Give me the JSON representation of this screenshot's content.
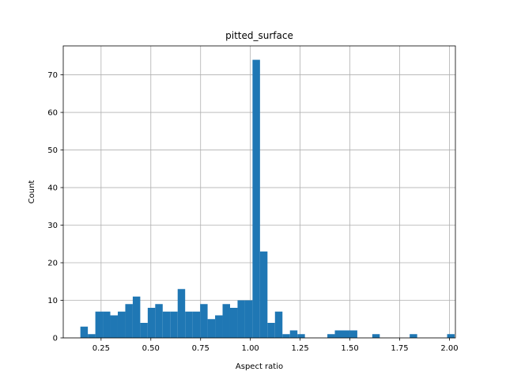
{
  "chart_data": {
    "type": "bar",
    "title": "pitted_surface",
    "xlabel": "Aspect ratio",
    "ylabel": "Count",
    "xlim": [
      0.06,
      2.03
    ],
    "ylim": [
      0,
      77.7
    ],
    "grid": true,
    "bar_color": "#1f77b4",
    "xticks": [
      0.25,
      0.5,
      0.75,
      1.0,
      1.25,
      1.5,
      1.75,
      2.0
    ],
    "xtick_labels": [
      "0.25",
      "0.50",
      "0.75",
      "1.00",
      "1.25",
      "1.50",
      "1.75",
      "2.00"
    ],
    "yticks": [
      0,
      10,
      20,
      30,
      40,
      50,
      60,
      70
    ],
    "ytick_labels": [
      "0",
      "10",
      "20",
      "30",
      "40",
      "50",
      "60",
      "70"
    ],
    "bins": {
      "start": 0.146,
      "width": 0.0376,
      "counts": [
        3,
        1,
        7,
        7,
        6,
        7,
        9,
        11,
        4,
        8,
        9,
        7,
        7,
        13,
        7,
        7,
        9,
        5,
        6,
        9,
        8,
        10,
        10,
        74,
        23,
        4,
        7,
        1,
        2,
        1,
        0,
        0,
        0,
        1,
        2,
        2,
        2,
        0,
        0,
        1,
        0,
        0,
        0,
        0,
        1,
        0,
        0,
        0,
        0,
        1
      ]
    }
  }
}
